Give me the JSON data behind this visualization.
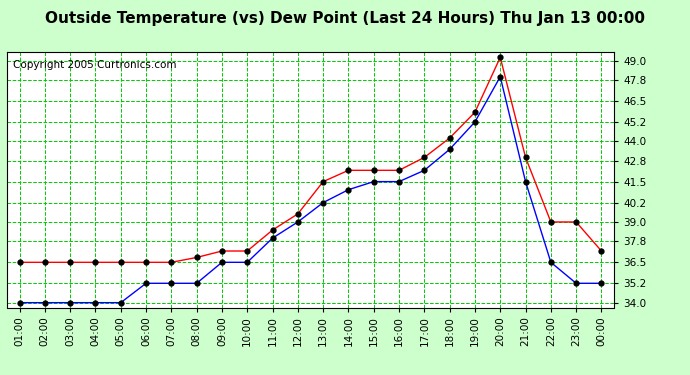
{
  "title": "Outside Temperature (vs) Dew Point (Last 24 Hours) Thu Jan 13 00:00",
  "copyright": "Copyright 2005 Curtronics.com",
  "x_labels": [
    "01:00",
    "02:00",
    "03:00",
    "04:00",
    "05:00",
    "06:00",
    "07:00",
    "08:00",
    "09:00",
    "10:00",
    "11:00",
    "12:00",
    "13:00",
    "14:00",
    "15:00",
    "16:00",
    "17:00",
    "18:00",
    "19:00",
    "20:00",
    "21:00",
    "22:00",
    "23:00",
    "00:00"
  ],
  "y_ticks": [
    34.0,
    35.2,
    36.5,
    37.8,
    39.0,
    40.2,
    41.5,
    42.8,
    44.0,
    45.2,
    46.5,
    47.8,
    49.0
  ],
  "ylim": [
    33.7,
    49.5
  ],
  "red_line": [
    36.5,
    36.5,
    36.5,
    36.5,
    36.5,
    36.5,
    36.5,
    36.8,
    37.2,
    37.2,
    38.5,
    39.5,
    41.5,
    42.2,
    42.2,
    42.2,
    43.0,
    44.2,
    45.8,
    49.2,
    43.0,
    39.0,
    39.0,
    37.2
  ],
  "blue_line": [
    34.0,
    34.0,
    34.0,
    34.0,
    34.0,
    35.2,
    35.2,
    35.2,
    36.5,
    36.5,
    38.0,
    39.0,
    40.2,
    41.0,
    41.5,
    41.5,
    42.2,
    43.5,
    45.2,
    48.0,
    41.5,
    36.5,
    35.2,
    35.2
  ],
  "bg_color": "#ccffcc",
  "plot_bg_color": "#ffffff",
  "grid_color": "#00cc00",
  "red_color": "#ff0000",
  "blue_color": "#0000ff",
  "marker_color": "#000000",
  "title_fontsize": 11,
  "copyright_fontsize": 7.5
}
